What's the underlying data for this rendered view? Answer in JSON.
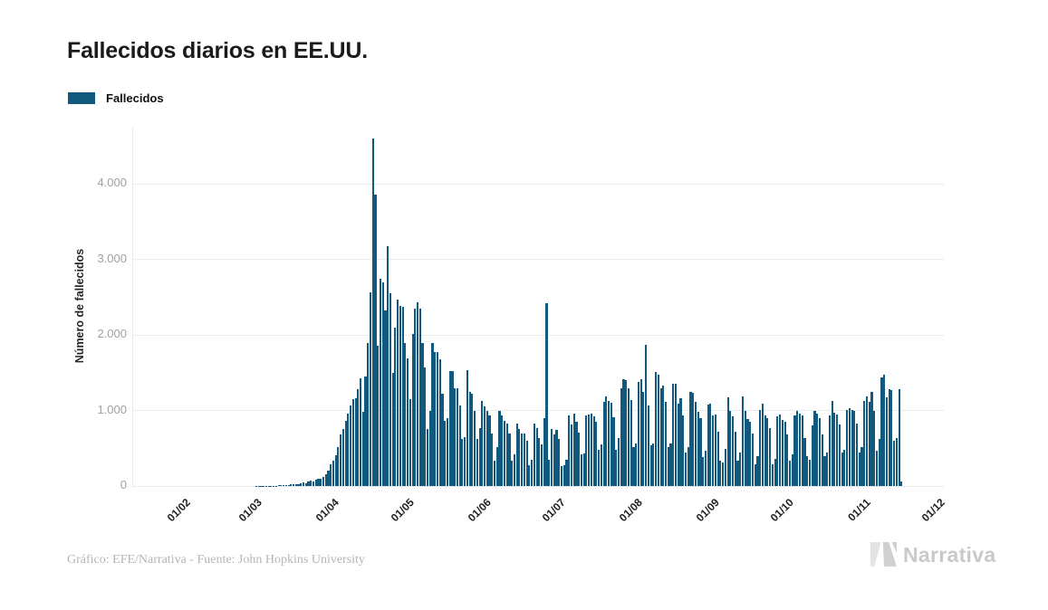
{
  "header": {
    "title": "Fallecidos diarios en EE.UU."
  },
  "legend": {
    "label": "Fallecidos",
    "color": "#12597e"
  },
  "chart_data": {
    "type": "bar",
    "title": "Fallecidos diarios en EE.UU.",
    "series_name": "Fallecidos",
    "xlabel": "",
    "ylabel": "Número de fallecidos",
    "bar_color": "#12597e",
    "grid": true,
    "legend_position": "top-left",
    "ylim": [
      0,
      4760
    ],
    "yticks": [
      {
        "value": 0,
        "label": "0"
      },
      {
        "value": 1000,
        "label": "1.000"
      },
      {
        "value": 2000,
        "label": "2.000"
      },
      {
        "value": 3000,
        "label": "3.000"
      },
      {
        "value": 4000,
        "label": "4.000"
      }
    ],
    "xticks": [
      {
        "label": "01/02",
        "day": 9
      },
      {
        "label": "01/03",
        "day": 38
      },
      {
        "label": "01/04",
        "day": 69
      },
      {
        "label": "01/05",
        "day": 99
      },
      {
        "label": "01/06",
        "day": 130
      },
      {
        "label": "01/07",
        "day": 160
      },
      {
        "label": "01/08",
        "day": 191
      },
      {
        "label": "01/09",
        "day": 222
      },
      {
        "label": "01/10",
        "day": 252
      },
      {
        "label": "01/11",
        "day": 283
      },
      {
        "label": "01/12",
        "day": 313
      }
    ],
    "values": [
      0,
      0,
      0,
      0,
      0,
      0,
      0,
      0,
      0,
      0,
      0,
      0,
      0,
      0,
      0,
      0,
      0,
      0,
      0,
      0,
      0,
      0,
      0,
      0,
      0,
      0,
      0,
      0,
      0,
      0,
      0,
      0,
      0,
      0,
      0,
      0,
      0,
      0,
      0,
      0,
      1,
      1,
      2,
      2,
      3,
      3,
      4,
      5,
      6,
      8,
      10,
      12,
      14,
      17,
      20,
      25,
      30,
      22,
      35,
      45,
      40,
      55,
      70,
      60,
      80,
      100,
      90,
      120,
      150,
      200,
      290,
      340,
      410,
      520,
      680,
      750,
      860,
      960,
      1070,
      1150,
      1160,
      1280,
      1430,
      980,
      1450,
      1900,
      2570,
      4600,
      3860,
      1860,
      2750,
      2700,
      2330,
      3180,
      2550,
      1500,
      2100,
      2470,
      2390,
      2370,
      1890,
      1690,
      1150,
      2010,
      2350,
      2440,
      2350,
      1900,
      1570,
      750,
      1000,
      1890,
      1770,
      1780,
      1680,
      1220,
      860,
      900,
      1520,
      1520,
      1290,
      1300,
      1070,
      620,
      650,
      1540,
      1250,
      1220,
      990,
      620,
      770,
      1130,
      1050,
      1000,
      930,
      690,
      330,
      520,
      1000,
      930,
      860,
      830,
      700,
      330,
      420,
      830,
      760,
      700,
      700,
      600,
      280,
      350,
      830,
      770,
      640,
      550,
      900,
      2420,
      350,
      750,
      680,
      740,
      620,
      260,
      270,
      350,
      930,
      820,
      960,
      850,
      710,
      420,
      430,
      940,
      950,
      960,
      920,
      850,
      480,
      550,
      1120,
      1190,
      1130,
      1100,
      910,
      480,
      630,
      1300,
      1420,
      1400,
      1290,
      1140,
      520,
      560,
      1380,
      1420,
      1250,
      1870,
      1070,
      540,
      560,
      1510,
      1470,
      1290,
      1330,
      1110,
      520,
      560,
      1360,
      1350,
      1090,
      1160,
      930,
      440,
      510,
      1250,
      1240,
      1120,
      980,
      900,
      380,
      470,
      1080,
      1090,
      930,
      950,
      720,
      330,
      310,
      490,
      1180,
      990,
      920,
      720,
      330,
      440,
      1190,
      990,
      890,
      850,
      700,
      290,
      390,
      1010,
      1090,
      930,
      900,
      770,
      290,
      360,
      920,
      950,
      880,
      850,
      680,
      340,
      420,
      930,
      990,
      960,
      940,
      640,
      390,
      350,
      800,
      990,
      960,
      900,
      680,
      400,
      440,
      930,
      1130,
      970,
      950,
      820,
      440,
      480,
      1010,
      1030,
      1010,
      1000,
      830,
      440,
      510,
      1130,
      1190,
      1120,
      1250,
      1000,
      470,
      620,
      1440,
      1470,
      1170,
      1280,
      1270,
      600,
      640,
      1280,
      60
    ]
  },
  "footer": {
    "caption": "Gráfico: EFE/Narrativa - Fuente: John Hopkins University",
    "logo_text": "Narrativa"
  }
}
